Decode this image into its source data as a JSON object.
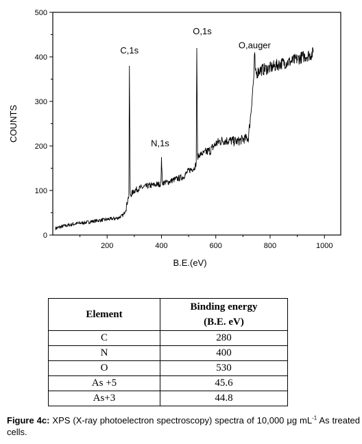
{
  "chart_data": {
    "type": "line",
    "xlabel": "B.E.(eV)",
    "ylabel": "COUNTS",
    "xlim": [
      0,
      1060
    ],
    "ylim": [
      0,
      500
    ],
    "x_ticks": [
      200,
      400,
      600,
      800,
      1000
    ],
    "y_ticks": [
      0,
      100,
      200,
      300,
      400,
      500
    ],
    "series": [
      {
        "points": [
          [
            10,
            15
          ],
          [
            40,
            20
          ],
          [
            80,
            25
          ],
          [
            120,
            28
          ],
          [
            160,
            32
          ],
          [
            200,
            35
          ],
          [
            240,
            38
          ],
          [
            260,
            45
          ],
          [
            270,
            60
          ],
          [
            276,
            80
          ],
          [
            280,
            88
          ],
          [
            282,
            380
          ],
          [
            285,
            90
          ],
          [
            290,
            92
          ],
          [
            300,
            100
          ],
          [
            320,
            105
          ],
          [
            350,
            110
          ],
          [
            380,
            113
          ],
          [
            398,
            115
          ],
          [
            400,
            175
          ],
          [
            403,
            118
          ],
          [
            420,
            118
          ],
          [
            450,
            125
          ],
          [
            480,
            130
          ],
          [
            500,
            145
          ],
          [
            520,
            150
          ],
          [
            528,
            160
          ],
          [
            530,
            420
          ],
          [
            533,
            175
          ],
          [
            540,
            180
          ],
          [
            560,
            185
          ],
          [
            580,
            190
          ],
          [
            600,
            205
          ],
          [
            620,
            212
          ],
          [
            650,
            212
          ],
          [
            680,
            210
          ],
          [
            700,
            215
          ],
          [
            720,
            218
          ],
          [
            730,
            280
          ],
          [
            735,
            320
          ],
          [
            740,
            355
          ],
          [
            743,
            410
          ],
          [
            746,
            360
          ],
          [
            760,
            370
          ],
          [
            800,
            375
          ],
          [
            840,
            385
          ],
          [
            880,
            390
          ],
          [
            920,
            400
          ],
          [
            950,
            405
          ],
          [
            960,
            410
          ]
        ]
      }
    ],
    "annotations": [
      {
        "text": "C,1s",
        "x": 282,
        "y": 380
      },
      {
        "text": "N,1s",
        "x": 400,
        "y": 175
      },
      {
        "text": "O,1s",
        "x": 530,
        "y": 420
      },
      {
        "text": "O,auger",
        "x": 743,
        "y": 410
      }
    ]
  },
  "table": {
    "headers": [
      "Element",
      "Binding energy (B.E. eV)"
    ],
    "rows": [
      [
        "C",
        "280"
      ],
      [
        "N",
        "400"
      ],
      [
        "O",
        "530"
      ],
      [
        "As +5",
        "45.6"
      ],
      [
        "As+3",
        "44.8"
      ]
    ]
  },
  "caption": {
    "label": "Figure 4c:",
    "text_before": " XPS (X-ray photoelectron spectroscopy) spectra of 10,000 μg mL",
    "superscript": "-1",
    "text_after": " As treated cells."
  }
}
